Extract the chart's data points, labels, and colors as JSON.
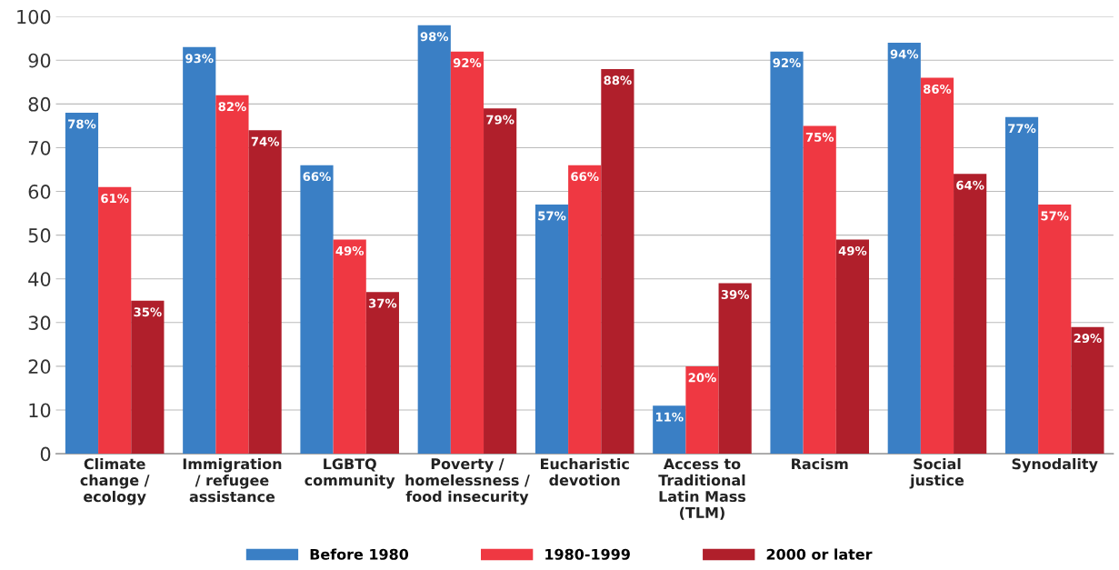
{
  "chart_data": {
    "type": "bar",
    "categories": [
      "Climate\nchange /\necology",
      "Immigration\n/ refugee\nassistance",
      "LGBTQ\ncommunity",
      "Poverty /\nhomelessness /\nfood insecurity",
      "Eucharistic\ndevotion",
      "Access to\nTraditional\nLatin Mass\n(TLM)",
      "Racism",
      "Social\njustice",
      "Synodality"
    ],
    "series": [
      {
        "name": "Before 1980",
        "color": "#3a7fc5",
        "values": [
          78,
          93,
          66,
          98,
          57,
          11,
          92,
          94,
          77
        ],
        "value_labels": [
          "78%",
          "93%",
          "66%",
          "98%",
          "57%",
          "11%",
          "92%",
          "94%",
          "77%"
        ]
      },
      {
        "name": "1980-1999",
        "color": "#ef3842",
        "values": [
          61,
          82,
          49,
          92,
          66,
          20,
          75,
          86,
          57
        ],
        "value_labels": [
          "61%",
          "82%",
          "49%",
          "92%",
          "66%",
          "20%",
          "75%",
          "86%",
          "57%"
        ]
      },
      {
        "name": "2000 or later",
        "color": "#b01f2b",
        "values": [
          35,
          74,
          37,
          79,
          88,
          39,
          49,
          64,
          29
        ],
        "value_labels": [
          "35%",
          "74%",
          "37%",
          "79%",
          "88%",
          "39%",
          "49%",
          "64%",
          "29%"
        ]
      }
    ],
    "ylim": [
      0,
      100
    ],
    "yticks": [
      0,
      10,
      20,
      30,
      40,
      50,
      60,
      70,
      80,
      90,
      100
    ],
    "grid": "y",
    "legend": "bottom"
  }
}
